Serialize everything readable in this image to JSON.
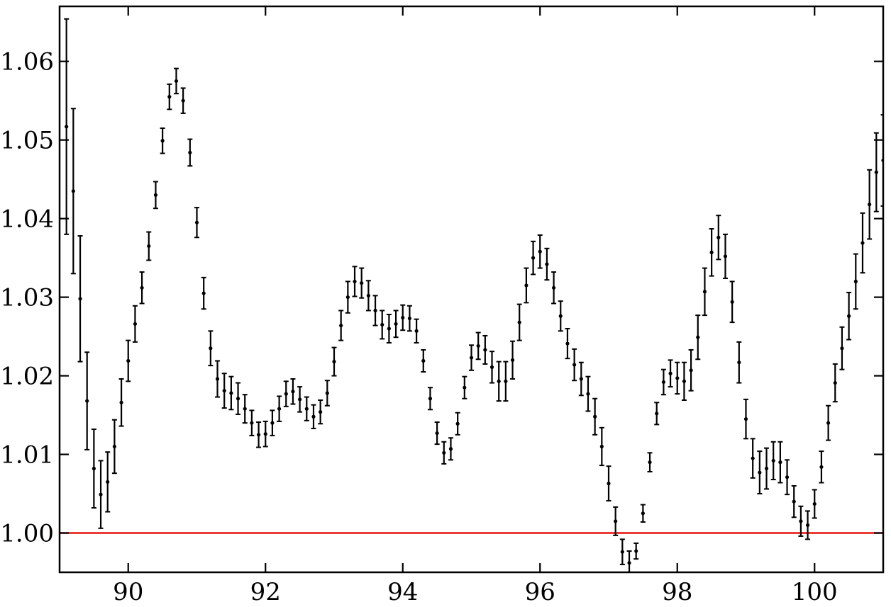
{
  "chart_data": {
    "type": "scatter",
    "title": "",
    "xlabel": "",
    "ylabel": "",
    "xlim": [
      89,
      101
    ],
    "ylim": [
      0.995,
      1.067
    ],
    "xticks": [
      90,
      92,
      94,
      96,
      98,
      100
    ],
    "xtick_labels": [
      "90",
      "92",
      "94",
      "96",
      "98",
      "100"
    ],
    "yticks": [
      1.0,
      1.01,
      1.02,
      1.03,
      1.04,
      1.05,
      1.06
    ],
    "ytick_labels": [
      "1.00",
      "1.01",
      "1.02",
      "1.03",
      "1.04",
      "1.05",
      "1.06"
    ],
    "reference_line": {
      "y": 1.0,
      "color": "#e8120c"
    },
    "marker_color": "#000000",
    "grid": false,
    "series": [
      {
        "x": [
          89.1,
          89.2,
          89.3,
          89.4,
          89.5,
          89.6,
          89.7,
          89.8,
          89.9,
          90.0,
          90.1,
          90.2,
          90.3,
          90.4,
          90.5,
          90.6,
          90.7,
          90.8,
          90.9,
          91.0,
          91.1,
          91.2,
          91.3,
          91.4,
          91.5,
          91.6,
          91.7,
          91.8,
          91.9,
          92.0,
          92.1,
          92.2,
          92.3,
          92.4,
          92.5,
          92.6,
          92.7,
          92.8,
          92.9,
          93.0,
          93.1,
          93.2,
          93.3,
          93.4,
          93.5,
          93.6,
          93.7,
          93.8,
          93.9,
          94.0,
          94.1,
          94.2,
          94.3,
          94.4,
          94.5,
          94.6,
          94.7,
          94.8,
          94.9,
          95.0,
          95.1,
          95.2,
          95.3,
          95.4,
          95.5,
          95.6,
          95.7,
          95.8,
          95.9,
          96.0,
          96.1,
          96.2,
          96.3,
          96.4,
          96.5,
          96.6,
          96.7,
          96.8,
          96.9,
          97.0,
          97.1,
          97.2,
          97.3,
          97.4,
          97.5,
          97.6,
          97.7,
          97.8,
          97.9,
          98.0,
          98.1,
          98.2,
          98.3,
          98.4,
          98.5,
          98.6,
          98.7,
          98.8,
          98.9,
          99.0,
          99.1,
          99.2,
          99.3,
          99.4,
          99.5,
          99.6,
          99.7,
          99.8,
          99.9,
          100.0,
          100.1,
          100.2,
          100.3,
          100.4,
          100.5,
          100.6,
          100.7,
          100.8,
          100.9,
          101.0
        ],
        "y": [
          1.0517,
          1.0435,
          1.0298,
          1.0168,
          1.0082,
          1.0049,
          1.0065,
          1.011,
          1.0166,
          1.0219,
          1.0266,
          1.0312,
          1.0365,
          1.043,
          1.0499,
          1.0555,
          1.0575,
          1.055,
          1.0484,
          1.0395,
          1.0305,
          1.0235,
          1.0196,
          1.0181,
          1.0178,
          1.0171,
          1.0158,
          1.014,
          1.0125,
          1.0126,
          1.014,
          1.0158,
          1.0177,
          1.018,
          1.017,
          1.0158,
          1.0148,
          1.0154,
          1.0178,
          1.0218,
          1.0264,
          1.03,
          1.032,
          1.0318,
          1.0302,
          1.0283,
          1.0265,
          1.026,
          1.0266,
          1.0274,
          1.0273,
          1.0257,
          1.0219,
          1.0171,
          1.0127,
          1.0102,
          1.0107,
          1.0139,
          1.0185,
          1.0223,
          1.0238,
          1.0233,
          1.0211,
          1.0193,
          1.0193,
          1.022,
          1.0268,
          1.0315,
          1.035,
          1.0358,
          1.0342,
          1.0312,
          1.0276,
          1.0241,
          1.0214,
          1.0196,
          1.0177,
          1.0148,
          1.011,
          1.0063,
          1.0015,
          0.9976,
          0.9962,
          0.9977,
          1.0025,
          1.009,
          1.0152,
          1.0192,
          1.0203,
          1.0197,
          1.0193,
          1.0207,
          1.0249,
          1.0307,
          1.0357,
          1.0376,
          1.0352,
          1.0294,
          1.0217,
          1.0145,
          1.0095,
          1.0077,
          1.0082,
          1.0092,
          1.009,
          1.0071,
          1.004,
          1.0015,
          1.001,
          1.0037,
          1.0084,
          1.014,
          1.0191,
          1.0235,
          1.0276,
          1.032,
          1.0369,
          1.0418,
          1.0459,
          1.0474
        ],
        "err": [
          0.0137,
          0.0105,
          0.008,
          0.0062,
          0.005,
          0.0043,
          0.0038,
          0.0034,
          0.003,
          0.0026,
          0.0023,
          0.002,
          0.0018,
          0.0017,
          0.0016,
          0.0016,
          0.0016,
          0.0016,
          0.0017,
          0.0019,
          0.002,
          0.0022,
          0.0023,
          0.0022,
          0.0021,
          0.002,
          0.0018,
          0.0016,
          0.0016,
          0.0016,
          0.0016,
          0.0016,
          0.0016,
          0.0016,
          0.0016,
          0.0015,
          0.0015,
          0.0015,
          0.0016,
          0.0018,
          0.0019,
          0.002,
          0.0019,
          0.0019,
          0.0019,
          0.0019,
          0.0018,
          0.0018,
          0.0017,
          0.0016,
          0.0016,
          0.0015,
          0.0014,
          0.0014,
          0.0014,
          0.0014,
          0.0014,
          0.0014,
          0.0014,
          0.0016,
          0.0017,
          0.0018,
          0.002,
          0.0025,
          0.0025,
          0.0024,
          0.0023,
          0.0022,
          0.0021,
          0.0021,
          0.002,
          0.002,
          0.0019,
          0.0019,
          0.002,
          0.0021,
          0.0022,
          0.0023,
          0.0024,
          0.0022,
          0.0018,
          0.0016,
          0.0015,
          0.001,
          0.0011,
          0.0012,
          0.0014,
          0.0016,
          0.0017,
          0.002,
          0.0024,
          0.0026,
          0.0028,
          0.003,
          0.003,
          0.0028,
          0.0028,
          0.0026,
          0.0026,
          0.0025,
          0.0025,
          0.0027,
          0.0026,
          0.0024,
          0.0026,
          0.0022,
          0.002,
          0.0019,
          0.0018,
          0.0018,
          0.002,
          0.0022,
          0.0024,
          0.0027,
          0.003,
          0.0035,
          0.0038,
          0.0044,
          0.005,
          0.0058
        ]
      }
    ]
  }
}
